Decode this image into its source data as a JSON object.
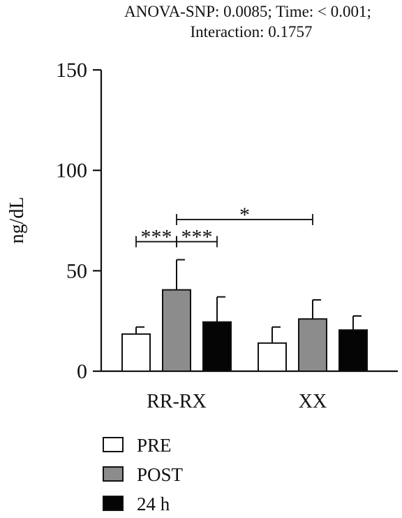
{
  "chart_data": {
    "type": "bar",
    "title": "ANOVA-SNP: 0.0085; Time: < 0.001;",
    "subtitle": "Interaction: 0.1757",
    "ylabel": "ng/dL",
    "xlabel": "",
    "ylim": [
      0,
      150
    ],
    "yticks": [
      "0",
      "50",
      "100",
      "150"
    ],
    "categories": [
      "RR-RX",
      "XX"
    ],
    "series": [
      {
        "name": "PRE",
        "values": [
          18.5,
          14
        ],
        "errors": [
          3.5,
          8
        ],
        "color": "#ffffff"
      },
      {
        "name": "POST",
        "values": [
          40.5,
          26
        ],
        "errors": [
          15,
          9.5
        ],
        "color": "#8c8c8c"
      },
      {
        "name": "24 h",
        "values": [
          24.5,
          20.5
        ],
        "errors": [
          12.5,
          7
        ],
        "color": "#050505"
      }
    ],
    "significance": [
      {
        "label": "***",
        "category": 0,
        "from_series": 0,
        "to_series": 1,
        "y": 64.5
      },
      {
        "label": "***",
        "category": 0,
        "from_series": 1,
        "to_series": 2,
        "y": 64.5
      },
      {
        "label": "*",
        "from_category": 0,
        "from_series": 1,
        "to_category": 1,
        "to_series": 1,
        "y": 75.5
      }
    ],
    "legend_position": "bottom-left",
    "grid": false
  }
}
